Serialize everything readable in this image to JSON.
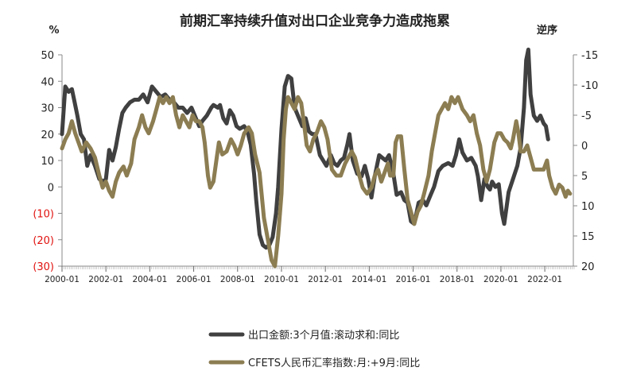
{
  "chart_data": {
    "type": "line",
    "title": "前期汇率持续升值对出口企业竞争力造成拖累",
    "left_unit": "%",
    "right_unit": "逆序",
    "x_tick_labels": [
      "2000-01",
      "2002-01",
      "2004-01",
      "2006-01",
      "2008-01",
      "2010-01",
      "2012-01",
      "2014-01",
      "2016-01",
      "2018-01",
      "2020-01",
      "2022-01"
    ],
    "left_axis": {
      "range": [
        -30,
        50
      ],
      "ticks": [
        50,
        40,
        30,
        20,
        10,
        0,
        -10,
        -20,
        -30
      ],
      "tick_labels": [
        "50",
        "40",
        "30",
        "20",
        "10",
        "0",
        "(10)",
        "(20)",
        "(30)"
      ]
    },
    "right_axis": {
      "reversed": true,
      "range": [
        -15,
        20
      ],
      "ticks": [
        -15,
        -10,
        -5,
        0,
        5,
        10,
        15,
        20
      ],
      "tick_labels": [
        "-15",
        "-10",
        "-5",
        "0",
        "5",
        "10",
        "15",
        "20"
      ]
    },
    "legend_position": "bottom-center",
    "grid": false,
    "series": [
      {
        "name": "出口金额:3个月值:滚动求和:同比",
        "axis": "left",
        "color": "#404040",
        "points": [
          [
            2000.0,
            20
          ],
          [
            2000.15,
            38
          ],
          [
            2000.3,
            36
          ],
          [
            2000.45,
            37
          ],
          [
            2000.55,
            33
          ],
          [
            2000.7,
            27
          ],
          [
            2000.85,
            20
          ],
          [
            2001.0,
            18
          ],
          [
            2001.15,
            8
          ],
          [
            2001.3,
            12
          ],
          [
            2001.5,
            8
          ],
          [
            2001.7,
            3
          ],
          [
            2001.9,
            2
          ],
          [
            2002.0,
            3
          ],
          [
            2002.15,
            14
          ],
          [
            2002.3,
            10
          ],
          [
            2002.45,
            15
          ],
          [
            2002.6,
            22
          ],
          [
            2002.75,
            28
          ],
          [
            2002.9,
            30
          ],
          [
            2003.1,
            32
          ],
          [
            2003.3,
            33
          ],
          [
            2003.5,
            33
          ],
          [
            2003.7,
            35
          ],
          [
            2003.9,
            32
          ],
          [
            2004.1,
            38
          ],
          [
            2004.3,
            36
          ],
          [
            2004.5,
            34
          ],
          [
            2004.7,
            35
          ],
          [
            2004.9,
            33
          ],
          [
            2005.1,
            32
          ],
          [
            2005.3,
            30
          ],
          [
            2005.5,
            30
          ],
          [
            2005.7,
            28
          ],
          [
            2005.9,
            30
          ],
          [
            2006.1,
            26
          ],
          [
            2006.25,
            23
          ],
          [
            2006.4,
            25
          ],
          [
            2006.6,
            27
          ],
          [
            2006.8,
            30
          ],
          [
            2006.9,
            31
          ],
          [
            2007.1,
            30
          ],
          [
            2007.2,
            31
          ],
          [
            2007.35,
            26
          ],
          [
            2007.5,
            24
          ],
          [
            2007.65,
            29
          ],
          [
            2007.8,
            27
          ],
          [
            2007.95,
            23
          ],
          [
            2008.1,
            22
          ],
          [
            2008.3,
            23
          ],
          [
            2008.45,
            21
          ],
          [
            2008.6,
            16
          ],
          [
            2008.75,
            5
          ],
          [
            2008.85,
            -5
          ],
          [
            2009.0,
            -18
          ],
          [
            2009.15,
            -22
          ],
          [
            2009.3,
            -23
          ],
          [
            2009.45,
            -22
          ],
          [
            2009.6,
            -19
          ],
          [
            2009.75,
            -10
          ],
          [
            2009.85,
            0
          ],
          [
            2010.0,
            22
          ],
          [
            2010.15,
            38
          ],
          [
            2010.3,
            42
          ],
          [
            2010.45,
            41
          ],
          [
            2010.6,
            30
          ],
          [
            2010.8,
            26
          ],
          [
            2010.95,
            23
          ],
          [
            2011.1,
            26
          ],
          [
            2011.25,
            21
          ],
          [
            2011.4,
            20
          ],
          [
            2011.55,
            20
          ],
          [
            2011.75,
            12
          ],
          [
            2011.9,
            10
          ],
          [
            2012.05,
            8
          ],
          [
            2012.25,
            12
          ],
          [
            2012.4,
            9
          ],
          [
            2012.55,
            8
          ],
          [
            2012.7,
            10
          ],
          [
            2012.85,
            11
          ],
          [
            2013.0,
            16
          ],
          [
            2013.1,
            20
          ],
          [
            2013.25,
            10
          ],
          [
            2013.45,
            5
          ],
          [
            2013.65,
            4
          ],
          [
            2013.8,
            8
          ],
          [
            2013.95,
            3
          ],
          [
            2014.1,
            -4
          ],
          [
            2014.25,
            4
          ],
          [
            2014.45,
            12
          ],
          [
            2014.6,
            11
          ],
          [
            2014.75,
            10
          ],
          [
            2014.9,
            12
          ],
          [
            2015.1,
            5
          ],
          [
            2015.25,
            -3
          ],
          [
            2015.45,
            -2
          ],
          [
            2015.6,
            -5
          ],
          [
            2015.75,
            -6
          ],
          [
            2015.9,
            -13
          ],
          [
            2016.05,
            -14
          ],
          [
            2016.25,
            -6
          ],
          [
            2016.45,
            -5
          ],
          [
            2016.6,
            -7
          ],
          [
            2016.8,
            -3
          ],
          [
            2016.95,
            0
          ],
          [
            2017.15,
            6
          ],
          [
            2017.35,
            8
          ],
          [
            2017.6,
            9
          ],
          [
            2017.8,
            8
          ],
          [
            2017.95,
            12
          ],
          [
            2018.1,
            18
          ],
          [
            2018.25,
            13
          ],
          [
            2018.45,
            10
          ],
          [
            2018.65,
            11
          ],
          [
            2018.85,
            8
          ],
          [
            2018.95,
            4
          ],
          [
            2019.1,
            -5
          ],
          [
            2019.25,
            3
          ],
          [
            2019.4,
            0
          ],
          [
            2019.5,
            -1
          ],
          [
            2019.6,
            2
          ],
          [
            2019.75,
            0
          ],
          [
            2019.9,
            1
          ],
          [
            2020.05,
            -10
          ],
          [
            2020.15,
            -14
          ],
          [
            2020.35,
            -2
          ],
          [
            2020.55,
            3
          ],
          [
            2020.75,
            8
          ],
          [
            2020.9,
            15
          ],
          [
            2021.05,
            30
          ],
          [
            2021.15,
            48
          ],
          [
            2021.25,
            52
          ],
          [
            2021.35,
            35
          ],
          [
            2021.5,
            27
          ],
          [
            2021.65,
            25
          ],
          [
            2021.8,
            27
          ],
          [
            2021.95,
            24
          ],
          [
            2022.05,
            23
          ],
          [
            2022.15,
            18
          ]
        ]
      },
      {
        "name": "CFETS人民币汇率指数:月:+9月:同比",
        "axis": "right",
        "color": "#8c7d52",
        "points": [
          [
            2000.0,
            0.5
          ],
          [
            2000.15,
            -1
          ],
          [
            2000.3,
            -2
          ],
          [
            2000.45,
            -4
          ],
          [
            2000.6,
            -2
          ],
          [
            2000.75,
            -0.5
          ],
          [
            2000.9,
            1
          ],
          [
            2001.1,
            -0.5
          ],
          [
            2001.3,
            0.5
          ],
          [
            2001.5,
            2
          ],
          [
            2001.7,
            5
          ],
          [
            2001.85,
            7
          ],
          [
            2002.0,
            6
          ],
          [
            2002.15,
            7.5
          ],
          [
            2002.3,
            8.5
          ],
          [
            2002.45,
            6
          ],
          [
            2002.6,
            4.5
          ],
          [
            2002.8,
            3.5
          ],
          [
            2002.95,
            5
          ],
          [
            2003.15,
            3
          ],
          [
            2003.3,
            -1
          ],
          [
            2003.5,
            -3
          ],
          [
            2003.65,
            -5
          ],
          [
            2003.8,
            -3
          ],
          [
            2003.95,
            -2
          ],
          [
            2004.15,
            -4
          ],
          [
            2004.3,
            -6
          ],
          [
            2004.45,
            -8
          ],
          [
            2004.6,
            -7
          ],
          [
            2004.75,
            -8
          ],
          [
            2004.9,
            -7
          ],
          [
            2005.05,
            -8
          ],
          [
            2005.2,
            -5
          ],
          [
            2005.35,
            -3
          ],
          [
            2005.5,
            -5
          ],
          [
            2005.65,
            -4
          ],
          [
            2005.8,
            -3
          ],
          [
            2005.95,
            -5
          ],
          [
            2006.1,
            -4
          ],
          [
            2006.25,
            -4
          ],
          [
            2006.4,
            -3
          ],
          [
            2006.5,
            -0.5
          ],
          [
            2006.65,
            5
          ],
          [
            2006.75,
            7
          ],
          [
            2006.9,
            6
          ],
          [
            2007.05,
            2
          ],
          [
            2007.15,
            -0.5
          ],
          [
            2007.3,
            1.5
          ],
          [
            2007.5,
            1
          ],
          [
            2007.7,
            -1
          ],
          [
            2007.85,
            0
          ],
          [
            2008.0,
            1.5
          ],
          [
            2008.15,
            0
          ],
          [
            2008.3,
            -2
          ],
          [
            2008.5,
            -3
          ],
          [
            2008.65,
            -2
          ],
          [
            2008.8,
            1.5
          ],
          [
            2009.0,
            4.5
          ],
          [
            2009.2,
            12
          ],
          [
            2009.4,
            16
          ],
          [
            2009.55,
            19
          ],
          [
            2009.7,
            20
          ],
          [
            2009.85,
            15
          ],
          [
            2010.0,
            8
          ],
          [
            2010.1,
            -1
          ],
          [
            2010.2,
            -6
          ],
          [
            2010.3,
            -8
          ],
          [
            2010.45,
            -7
          ],
          [
            2010.6,
            -6
          ],
          [
            2010.75,
            -8
          ],
          [
            2010.9,
            -7
          ],
          [
            2011.05,
            -3
          ],
          [
            2011.15,
            0
          ],
          [
            2011.3,
            1
          ],
          [
            2011.45,
            -1
          ],
          [
            2011.6,
            -2
          ],
          [
            2011.8,
            -4
          ],
          [
            2011.95,
            -3
          ],
          [
            2012.1,
            -1
          ],
          [
            2012.3,
            4
          ],
          [
            2012.5,
            5
          ],
          [
            2012.7,
            5
          ],
          [
            2012.9,
            3
          ],
          [
            2013.05,
            2
          ],
          [
            2013.2,
            1
          ],
          [
            2013.35,
            2
          ],
          [
            2013.55,
            5
          ],
          [
            2013.7,
            7
          ],
          [
            2013.9,
            8
          ],
          [
            2014.1,
            7
          ],
          [
            2014.25,
            5
          ],
          [
            2014.4,
            4
          ],
          [
            2014.55,
            6
          ],
          [
            2014.75,
            4
          ],
          [
            2014.85,
            3
          ],
          [
            2014.95,
            5
          ],
          [
            2015.1,
            5
          ],
          [
            2015.2,
            -0.5
          ],
          [
            2015.3,
            -1.5
          ],
          [
            2015.45,
            -1.5
          ],
          [
            2015.6,
            4
          ],
          [
            2015.75,
            9
          ],
          [
            2015.9,
            11
          ],
          [
            2016.05,
            13
          ],
          [
            2016.2,
            11
          ],
          [
            2016.35,
            10
          ],
          [
            2016.5,
            8
          ],
          [
            2016.7,
            5
          ],
          [
            2016.85,
            1
          ],
          [
            2017.0,
            -2
          ],
          [
            2017.15,
            -5
          ],
          [
            2017.3,
            -6
          ],
          [
            2017.45,
            -7
          ],
          [
            2017.6,
            -6
          ],
          [
            2017.75,
            -8
          ],
          [
            2017.9,
            -7
          ],
          [
            2018.05,
            -8
          ],
          [
            2018.25,
            -6
          ],
          [
            2018.45,
            -5
          ],
          [
            2018.6,
            -4
          ],
          [
            2018.75,
            -5
          ],
          [
            2018.9,
            -2
          ],
          [
            2019.05,
            0
          ],
          [
            2019.2,
            4
          ],
          [
            2019.35,
            6
          ],
          [
            2019.5,
            4
          ],
          [
            2019.7,
            -0.5
          ],
          [
            2019.85,
            -2
          ],
          [
            2020.0,
            -2
          ],
          [
            2020.15,
            -1
          ],
          [
            2020.3,
            -0.5
          ],
          [
            2020.45,
            0.5
          ],
          [
            2020.55,
            -1
          ],
          [
            2020.7,
            -4
          ],
          [
            2020.8,
            -2
          ],
          [
            2020.9,
            1
          ],
          [
            2021.05,
            1
          ],
          [
            2021.2,
            0
          ],
          [
            2021.35,
            2
          ],
          [
            2021.5,
            4
          ],
          [
            2021.65,
            4
          ],
          [
            2021.8,
            4
          ],
          [
            2021.95,
            4
          ],
          [
            2022.1,
            2.5
          ],
          [
            2022.2,
            5
          ],
          [
            2022.35,
            7
          ],
          [
            2022.5,
            8
          ],
          [
            2022.65,
            6.5
          ],
          [
            2022.8,
            7
          ],
          [
            2022.95,
            8.5
          ],
          [
            2023.05,
            7.5
          ],
          [
            2023.15,
            8
          ]
        ]
      }
    ]
  },
  "legend": {
    "items": [
      {
        "label": "出口金额:3个月值:滚动求和:同比",
        "color": "#404040"
      },
      {
        "label": "CFETS人民币汇率指数:月:+9月:同比",
        "color": "#8c7d52"
      }
    ]
  }
}
